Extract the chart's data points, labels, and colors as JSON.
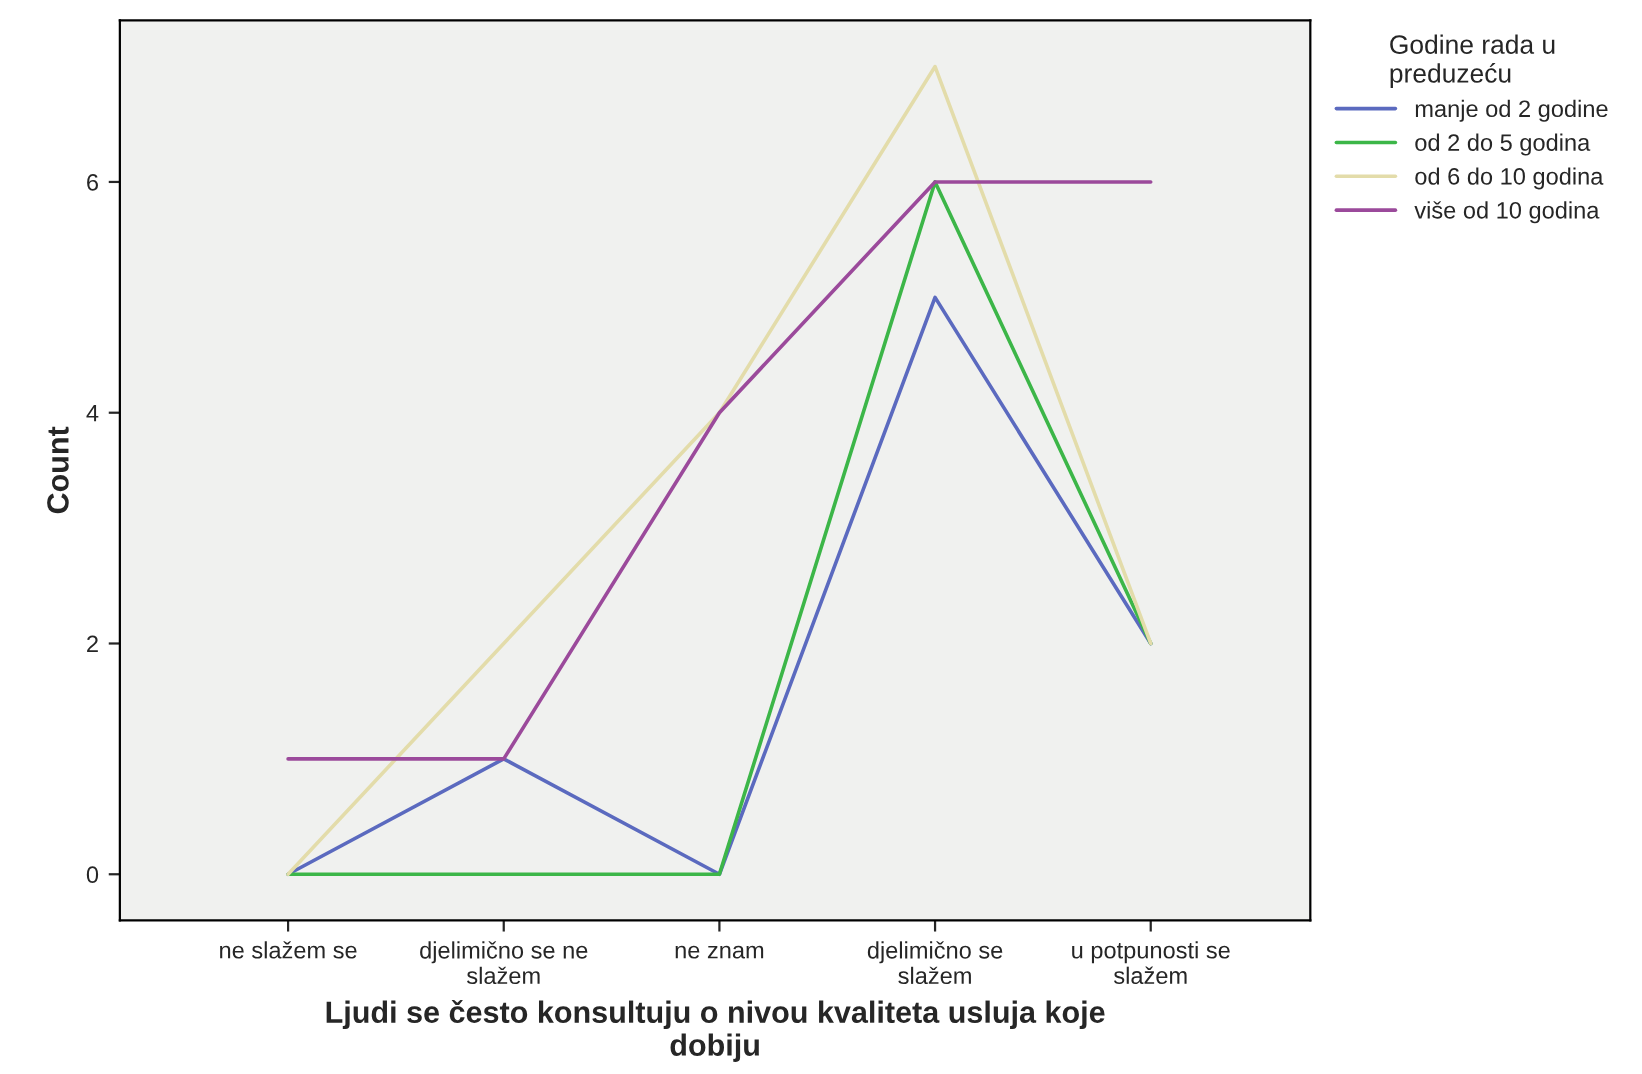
{
  "chart_data": {
    "type": "line",
    "xlabel": "Ljudi se često konsultuju o nivou kvaliteta usluja koje\ndobiju",
    "ylabel": "Count",
    "legend_title": "Godine rada u\npreduzeću",
    "categories": [
      "ne slažem se",
      "djelimično se ne\nslažem",
      "ne znam",
      "djelimično se\nslažem",
      "u potpunosti se\nslažem"
    ],
    "series": [
      {
        "name": "manje od 2 godine",
        "color": "#5b6abf",
        "values": [
          0,
          1,
          0,
          5,
          2
        ]
      },
      {
        "name": "od 2 do 5 godina",
        "color": "#3cb648",
        "values": [
          0,
          0,
          0,
          6,
          2
        ]
      },
      {
        "name": "od 6 do 10 godina",
        "color": "#e3dcaa",
        "values": [
          0,
          2,
          4,
          7,
          2
        ]
      },
      {
        "name": "više od 10 godina",
        "color": "#9b4a9b",
        "values": [
          1,
          1,
          4,
          6,
          6
        ]
      }
    ],
    "ylim": [
      -0.4,
      7.4
    ],
    "yticks": [
      0,
      2,
      4,
      6
    ],
    "grid": false,
    "legend": "right",
    "marker": "none",
    "line_style": "solid"
  }
}
